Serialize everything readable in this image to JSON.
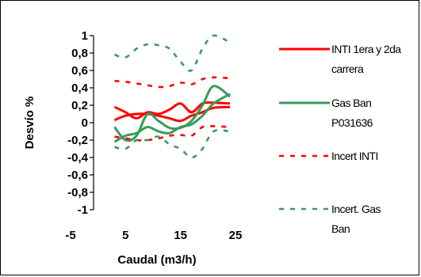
{
  "chart_data": {
    "type": "line",
    "title": "",
    "xlabel": "Caudal (m3/h)",
    "ylabel": "Desvío %",
    "xlim": [
      -5,
      25
    ],
    "ylim": [
      -1,
      1
    ],
    "x_ticks": [
      "-5",
      "5",
      "15",
      "25"
    ],
    "y_ticks": [
      "1",
      "0,8",
      "0,6",
      "0,4",
      "0,2",
      "0",
      "-0,2",
      "-0,4",
      "-0,6",
      "-0,8",
      "-1"
    ],
    "legend_placement": "right",
    "series": [
      {
        "name": "INTI 1era y 2da carrera",
        "color": "#ff0000",
        "style": "solid",
        "lines": [
          [
            [
              3,
              0.18
            ],
            [
              5,
              0.12
            ],
            [
              7,
              0.05
            ],
            [
              9,
              0.12
            ],
            [
              11,
              0.1
            ],
            [
              13,
              0.15
            ],
            [
              15,
              0.22
            ],
            [
              17,
              0.12
            ],
            [
              19,
              0.22
            ],
            [
              21,
              0.23
            ],
            [
              24,
              0.22
            ]
          ],
          [
            [
              3,
              0.03
            ],
            [
              5,
              0.08
            ],
            [
              7,
              0.1
            ],
            [
              9,
              0.1
            ],
            [
              11,
              0.08
            ],
            [
              13,
              0.05
            ],
            [
              15,
              0.02
            ],
            [
              17,
              0.08
            ],
            [
              19,
              0.12
            ],
            [
              21,
              0.17
            ],
            [
              24,
              0.18
            ]
          ]
        ]
      },
      {
        "name": "Gas Ban P031636",
        "color": "#3a9a5a",
        "style": "solid",
        "lines": [
          [
            [
              3,
              -0.05
            ],
            [
              5,
              -0.2
            ],
            [
              7,
              -0.15
            ],
            [
              9,
              0.1
            ],
            [
              11,
              0.02
            ],
            [
              13,
              -0.06
            ],
            [
              15,
              -0.06
            ],
            [
              17,
              0.02
            ],
            [
              19,
              0.2
            ],
            [
              21,
              0.42
            ],
            [
              24,
              0.3
            ]
          ],
          [
            [
              3,
              -0.22
            ],
            [
              5,
              -0.15
            ],
            [
              7,
              -0.12
            ],
            [
              9,
              -0.05
            ],
            [
              11,
              -0.1
            ],
            [
              13,
              -0.12
            ],
            [
              15,
              -0.05
            ],
            [
              17,
              -0.02
            ],
            [
              19,
              0.08
            ],
            [
              21,
              0.22
            ],
            [
              24,
              0.33
            ]
          ]
        ]
      },
      {
        "name": "Incert INTI",
        "color": "#ff0000",
        "style": "dashed",
        "lines": [
          [
            [
              3,
              0.48
            ],
            [
              5,
              0.47
            ],
            [
              7,
              0.45
            ],
            [
              9,
              0.43
            ],
            [
              11,
              0.41
            ],
            [
              13,
              0.42
            ],
            [
              15,
              0.46
            ],
            [
              17,
              0.44
            ],
            [
              19,
              0.5
            ],
            [
              21,
              0.52
            ],
            [
              24,
              0.51
            ]
          ],
          [
            [
              3,
              -0.16
            ],
            [
              5,
              -0.18
            ],
            [
              7,
              -0.2
            ],
            [
              9,
              -0.2
            ],
            [
              11,
              -0.18
            ],
            [
              13,
              -0.15
            ],
            [
              15,
              -0.14
            ],
            [
              17,
              -0.15
            ],
            [
              19,
              -0.05
            ],
            [
              21,
              -0.04
            ],
            [
              24,
              -0.05
            ]
          ]
        ]
      },
      {
        "name": "Incert. Gas Ban",
        "color": "#3a9a5a",
        "style": "dashed",
        "lines": [
          [
            [
              3,
              0.78
            ],
            [
              5,
              0.75
            ],
            [
              7,
              0.85
            ],
            [
              9,
              0.9
            ],
            [
              11,
              0.89
            ],
            [
              13,
              0.85
            ],
            [
              15,
              0.7
            ],
            [
              17,
              0.6
            ],
            [
              19,
              0.85
            ],
            [
              21,
              1.0
            ],
            [
              24,
              0.92
            ]
          ],
          [
            [
              3,
              -0.28
            ],
            [
              5,
              -0.3
            ],
            [
              7,
              -0.2
            ],
            [
              9,
              -0.2
            ],
            [
              11,
              -0.16
            ],
            [
              13,
              -0.25
            ],
            [
              15,
              -0.3
            ],
            [
              17,
              -0.4
            ],
            [
              19,
              -0.3
            ],
            [
              21,
              -0.1
            ],
            [
              24,
              -0.1
            ]
          ]
        ]
      }
    ]
  },
  "legend": {
    "entries": [
      {
        "lines": [
          "INTI 1era y 2da",
          "carrera"
        ]
      },
      {
        "lines": [
          "Gas Ban",
          "P031636"
        ]
      },
      {
        "lines": [
          "Incert INTI"
        ]
      },
      {
        "lines": [
          "Incert. Gas",
          "Ban"
        ]
      }
    ]
  }
}
